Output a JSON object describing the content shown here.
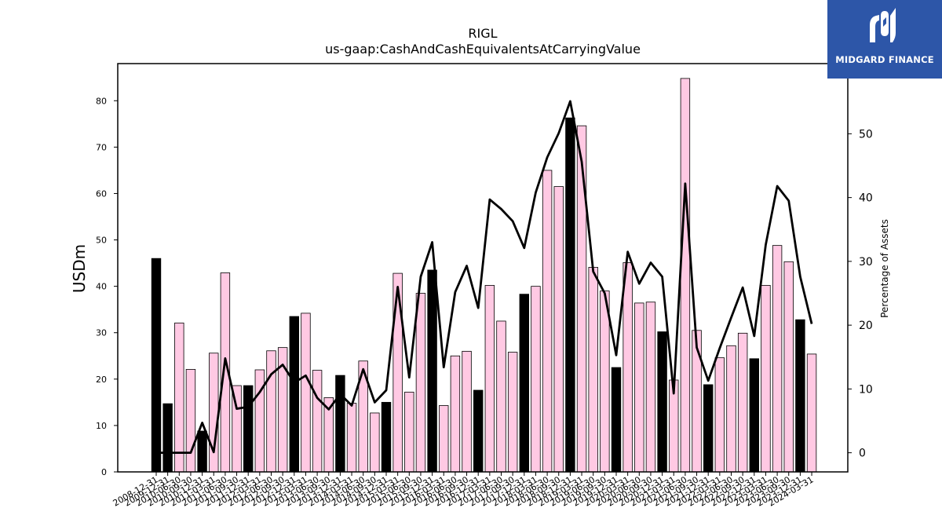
{
  "logo": {
    "text": "MIDGARD FINANCE"
  },
  "chart_data": {
    "type": "bar",
    "title": "RIGL",
    "subtitle": "us-gaap:CashAndCashEquivalentsAtCarryingValue",
    "ylabel": "USDm",
    "y2label": "Percentage of Assets",
    "ylim": [
      0,
      88
    ],
    "y2lim": [
      -3,
      61
    ],
    "yticks": [
      0,
      10,
      20,
      30,
      40,
      50,
      60,
      70,
      80
    ],
    "y2ticks": [
      0,
      10,
      20,
      30,
      40,
      50
    ],
    "colors": {
      "q4_bar": "#000000",
      "other_bar": "#ffc9e3",
      "bar_edge": "#000000",
      "line": "#000000"
    },
    "categories": [
      "2008-12-31",
      "2009-12-31",
      "2010-06-30",
      "2010-09-30",
      "2010-12-31",
      "2011-03-31",
      "2011-06-30",
      "2011-09-30",
      "2011-12-31",
      "2012-03-31",
      "2012-06-30",
      "2012-09-30",
      "2012-12-31",
      "2013-03-31",
      "2013-06-30",
      "2013-09-30",
      "2013-12-31",
      "2014-03-31",
      "2014-06-30",
      "2014-09-30",
      "2014-12-31",
      "2015-03-31",
      "2015-06-30",
      "2015-09-30",
      "2015-12-31",
      "2016-03-31",
      "2016-06-30",
      "2016-09-30",
      "2016-12-31",
      "2017-03-31",
      "2017-06-30",
      "2017-09-30",
      "2017-12-31",
      "2018-03-31",
      "2018-06-30",
      "2018-09-30",
      "2018-12-31",
      "2019-03-31",
      "2019-06-30",
      "2019-09-30",
      "2019-12-31",
      "2020-03-31",
      "2020-06-30",
      "2020-09-30",
      "2020-12-31",
      "2021-03-31",
      "2021-06-30",
      "2021-09-30",
      "2021-12-31",
      "2022-03-31",
      "2022-06-30",
      "2022-09-30",
      "2022-12-31",
      "2023-03-31",
      "2023-06-30",
      "2023-09-30",
      "2023-12-31",
      "2024-03-31"
    ],
    "series": [
      {
        "type": "bar",
        "values": [
          46.0,
          14.7,
          32.1,
          22.1,
          8.8,
          25.6,
          42.9,
          18.6,
          18.6,
          22.0,
          26.1,
          26.8,
          33.5,
          34.2,
          21.9,
          16.0,
          20.8,
          14.8,
          23.9,
          12.7,
          15.0,
          42.8,
          17.2,
          38.5,
          43.5,
          14.3,
          25.0,
          26.0,
          17.6,
          40.2,
          32.5,
          25.8,
          38.3,
          40.0,
          65.0,
          61.5,
          76.3,
          74.6,
          44.1,
          39.0,
          22.5,
          45.1,
          36.4,
          36.6,
          30.2,
          19.8,
          84.8,
          30.5,
          18.8,
          24.6,
          27.2,
          29.9,
          24.4,
          40.2,
          48.8,
          45.3,
          32.8,
          25.4
        ]
      },
      {
        "type": "line",
        "axis": "right",
        "values": [
          0.0,
          0.0,
          0.0,
          0.0,
          4.7,
          0.1,
          14.8,
          6.9,
          7.2,
          9.5,
          12.3,
          13.8,
          11.0,
          12.1,
          8.6,
          6.8,
          9.2,
          7.4,
          13.1,
          7.9,
          9.8,
          26.0,
          11.8,
          27.6,
          33.0,
          13.4,
          25.2,
          29.3,
          22.7,
          39.7,
          38.2,
          36.3,
          32.1,
          40.8,
          46.3,
          50.1,
          55.1,
          45.6,
          28.4,
          25.0,
          15.3,
          31.5,
          26.5,
          29.8,
          27.6,
          9.3,
          42.2,
          16.5,
          11.3,
          16.4,
          21.2,
          25.9,
          18.3,
          32.6,
          41.8,
          39.5,
          27.6,
          20.2
        ]
      }
    ]
  }
}
